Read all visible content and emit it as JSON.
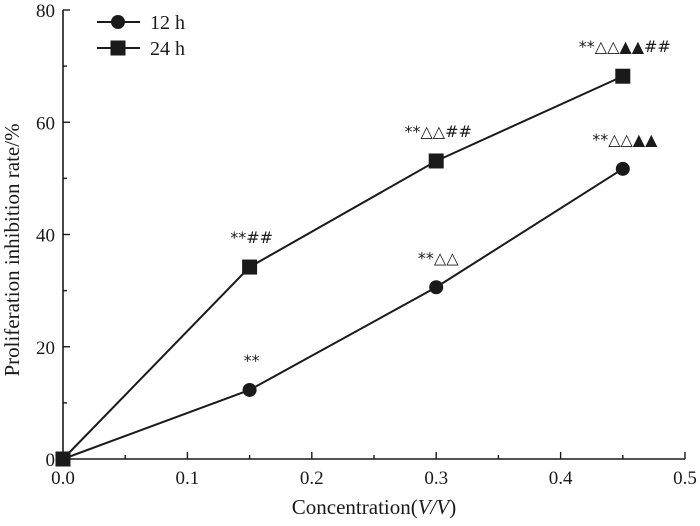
{
  "chart_data": {
    "type": "line",
    "title": "",
    "xlabel": "Concentration(V/V)",
    "xlabel_parts": {
      "prefix": "Concentration(",
      "italic": "V/V",
      "suffix": ")"
    },
    "ylabel": "Proliferation inhibition rate/%",
    "xlim": [
      0.0,
      0.5
    ],
    "ylim": [
      0,
      80
    ],
    "x_ticks": [
      0.0,
      0.1,
      0.2,
      0.3,
      0.4,
      0.5
    ],
    "x_tick_labels": [
      "0.0",
      "0.1",
      "0.2",
      "0.3",
      "0.4",
      "0.5"
    ],
    "y_ticks": [
      0,
      20,
      40,
      60,
      80
    ],
    "y_tick_labels": [
      "0",
      "20",
      "40",
      "60",
      "80"
    ],
    "grid": false,
    "legend_position": "top-left",
    "series": [
      {
        "name": "12 h",
        "marker": "circle",
        "color": "#1a1a1a",
        "x": [
          0.0,
          0.15,
          0.3,
          0.45
        ],
        "y": [
          0,
          12.3,
          30.6,
          51.7
        ],
        "annotations": [
          "",
          "**",
          "**△△",
          "**△△▲▲"
        ]
      },
      {
        "name": "24 h",
        "marker": "square",
        "color": "#1a1a1a",
        "x": [
          0.0,
          0.15,
          0.3,
          0.45
        ],
        "y": [
          0,
          34.2,
          53.1,
          68.2
        ],
        "annotations": [
          "",
          "**##",
          "**△△##",
          "**△△▲▲##"
        ]
      }
    ]
  }
}
